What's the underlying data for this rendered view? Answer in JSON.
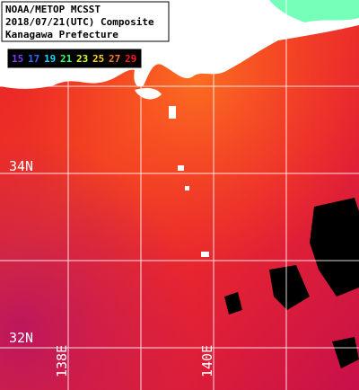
{
  "title": [
    "NOAA/METOP MCSST",
    "2018/07/21(UTC) Composite",
    "Kanagawa Prefecture"
  ],
  "legend": {
    "values": [
      15,
      17,
      19,
      21,
      23,
      25,
      27,
      29
    ],
    "colors": [
      "#7a3cff",
      "#2a6cff",
      "#19d6ff",
      "#3cff6a",
      "#d8ff2a",
      "#ffd21a",
      "#ff7a1a",
      "#ff1a1a"
    ]
  },
  "lat_labels": [
    "34N",
    "32N"
  ],
  "lon_labels": [
    "138E",
    "140E"
  ]
}
